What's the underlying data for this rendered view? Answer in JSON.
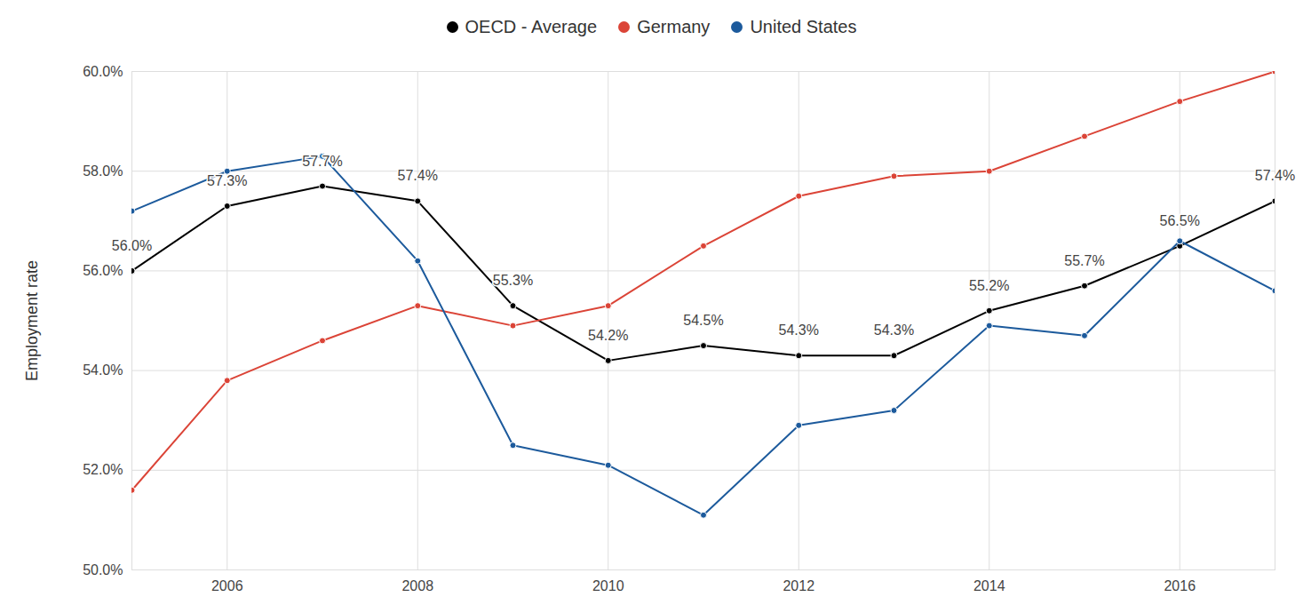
{
  "chart_data": {
    "type": "line",
    "y_label": "Employment rate",
    "x": [
      2005,
      2006,
      2007,
      2008,
      2009,
      2010,
      2011,
      2012,
      2013,
      2014,
      2015,
      2016,
      2017
    ],
    "series": [
      {
        "name": "OECD - Average",
        "color": "#000000",
        "marker": "circle",
        "values": [
          56.0,
          57.3,
          57.7,
          57.4,
          55.3,
          54.2,
          54.5,
          54.3,
          54.3,
          55.2,
          55.7,
          56.5,
          57.4
        ],
        "value_labels": [
          "56.0%",
          "57.3%",
          "57.7%",
          "57.4%",
          "55.3%",
          "54.2%",
          "54.5%",
          "54.3%",
          "54.3%",
          "55.2%",
          "55.7%",
          "56.5%",
          "57.4%"
        ]
      },
      {
        "name": "Germany",
        "color": "#db4437",
        "marker": "circle",
        "values": [
          51.6,
          53.8,
          54.6,
          55.3,
          54.9,
          55.3,
          56.5,
          57.5,
          57.9,
          58.0,
          58.7,
          59.4,
          60.0
        ]
      },
      {
        "name": "United States",
        "color": "#1c5a9c",
        "marker": "circle",
        "values": [
          57.2,
          58.0,
          58.3,
          56.2,
          52.5,
          52.1,
          51.1,
          52.9,
          53.2,
          54.9,
          54.7,
          56.6,
          55.6
        ]
      }
    ],
    "xlim": [
      2005,
      2017
    ],
    "xticks": [
      2006,
      2008,
      2010,
      2012,
      2014,
      2016
    ],
    "ylim": [
      50,
      60
    ],
    "yticks": [
      {
        "value": 50,
        "label": "50.0%"
      },
      {
        "value": 52,
        "label": "52.0%"
      },
      {
        "value": 54,
        "label": "54.0%"
      },
      {
        "value": 56,
        "label": "56.0%"
      },
      {
        "value": 58,
        "label": "58.0%"
      },
      {
        "value": 60,
        "label": "60.0%"
      }
    ],
    "grid": true,
    "legend": "top",
    "data_labels": true
  }
}
